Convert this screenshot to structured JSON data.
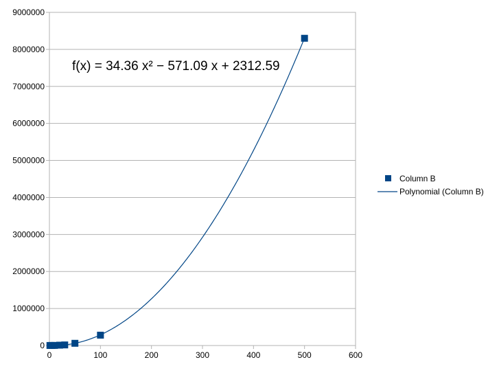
{
  "chart_data": {
    "type": "scatter",
    "title": "",
    "xlabel": "",
    "ylabel": "",
    "xlim": [
      0,
      600
    ],
    "ylim": [
      0,
      9000000
    ],
    "x_ticks": [
      0,
      100,
      200,
      300,
      400,
      500,
      600
    ],
    "y_ticks": [
      0,
      1000000,
      2000000,
      3000000,
      4000000,
      5000000,
      6000000,
      7000000,
      8000000,
      9000000
    ],
    "grid": "horizontal",
    "legend_position": "right",
    "series": [
      {
        "name": "Column B",
        "marker": "square",
        "color": "#004586",
        "points": [
          {
            "x": 1,
            "y": 1500
          },
          {
            "x": 5,
            "y": 1800
          },
          {
            "x": 10,
            "y": 2500
          },
          {
            "x": 20,
            "y": 9500
          },
          {
            "x": 30,
            "y": 16000
          },
          {
            "x": 50,
            "y": 60000
          },
          {
            "x": 100,
            "y": 280000
          },
          {
            "x": 500,
            "y": 8300000
          }
        ]
      }
    ],
    "trendline": {
      "name": "Polynomial (Column B)",
      "type": "polynomial",
      "color": "#004586",
      "coefficients": [
        34.36,
        -571.09,
        2312.59
      ],
      "x_range": [
        0,
        500
      ],
      "equation_label": "f(x) = 34.36 x² − 571.09 x + 2312.59"
    }
  }
}
